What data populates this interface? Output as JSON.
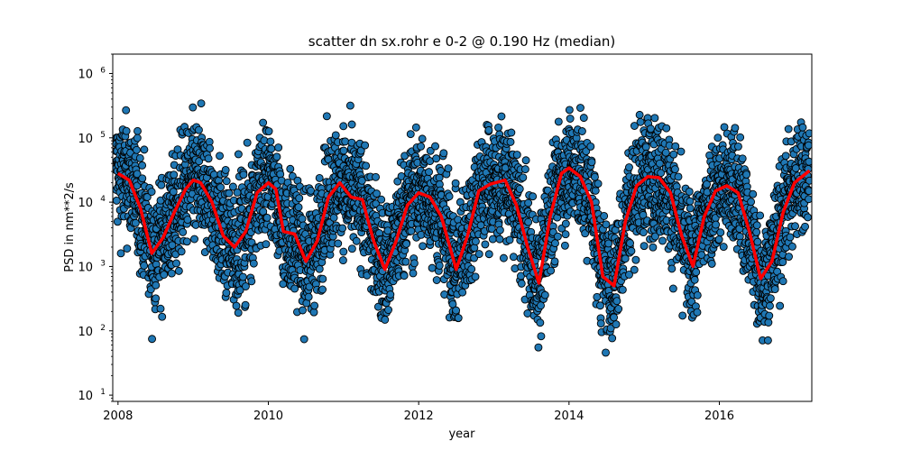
{
  "chart_data": {
    "type": "scatter",
    "title": "scatter dn sx.rohr e 0-2 @ 0.190 Hz (median)",
    "xlabel": "year",
    "ylabel": "PSD in nm**2/s",
    "xlim": [
      2007.93,
      2017.23
    ],
    "ylim": [
      8,
      2000000
    ],
    "yscale": "log",
    "x_ticks": [
      2008,
      2010,
      2012,
      2014,
      2016
    ],
    "x_tick_labels": [
      "2008",
      "2010",
      "2012",
      "2014",
      "2016"
    ],
    "y_ticks": [
      10,
      100,
      1000,
      10000,
      100000,
      1000000
    ],
    "y_tick_labels": [
      {
        "base": "10",
        "exp": "1"
      },
      {
        "base": "10",
        "exp": "2"
      },
      {
        "base": "10",
        "exp": "3"
      },
      {
        "base": "10",
        "exp": "4"
      },
      {
        "base": "10",
        "exp": "5"
      },
      {
        "base": "10",
        "exp": "6"
      }
    ],
    "grid": false,
    "series": [
      {
        "kind": "scatter",
        "color": "#1f77b4",
        "edgecolor": "#000000",
        "description_points": "dense daily PSD values spread roughly between 100 and 250000 nm**2/s, following the seasonal cycle",
        "spread_decades": 1.1
      },
      {
        "kind": "line",
        "color": "#ff0000",
        "x": [
          2008.0,
          2008.15,
          2008.3,
          2008.45,
          2008.6,
          2008.75,
          2008.9,
          2009.0,
          2009.1,
          2009.25,
          2009.4,
          2009.55,
          2009.7,
          2009.85,
          2010.0,
          2010.1,
          2010.2,
          2010.35,
          2010.5,
          2010.65,
          2010.8,
          2010.95,
          2011.1,
          2011.25,
          2011.4,
          2011.55,
          2011.7,
          2011.85,
          2012.0,
          2012.15,
          2012.3,
          2012.5,
          2012.65,
          2012.8,
          2012.95,
          2013.15,
          2013.3,
          2013.45,
          2013.6,
          2013.75,
          2013.9,
          2014.0,
          2014.15,
          2014.3,
          2014.45,
          2014.6,
          2014.75,
          2014.9,
          2015.05,
          2015.2,
          2015.35,
          2015.5,
          2015.65,
          2015.8,
          2015.95,
          2016.1,
          2016.25,
          2016.4,
          2016.55,
          2016.7,
          2016.85,
          2017.0,
          2017.2
        ],
        "y": [
          28000,
          22000,
          8000,
          1600,
          2800,
          7000,
          16000,
          22000,
          20000,
          10000,
          3000,
          2000,
          3500,
          14000,
          20000,
          16000,
          3500,
          3200,
          1200,
          2500,
          12000,
          20000,
          12000,
          11000,
          2500,
          900,
          2500,
          9000,
          14000,
          12000,
          6000,
          900,
          3000,
          15000,
          19000,
          22000,
          9000,
          2000,
          550,
          6000,
          28000,
          34000,
          25000,
          10000,
          700,
          500,
          5000,
          18000,
          25000,
          24000,
          14000,
          3000,
          1000,
          6000,
          15000,
          18000,
          14000,
          3500,
          650,
          1200,
          7000,
          20000,
          31000
        ]
      }
    ]
  }
}
